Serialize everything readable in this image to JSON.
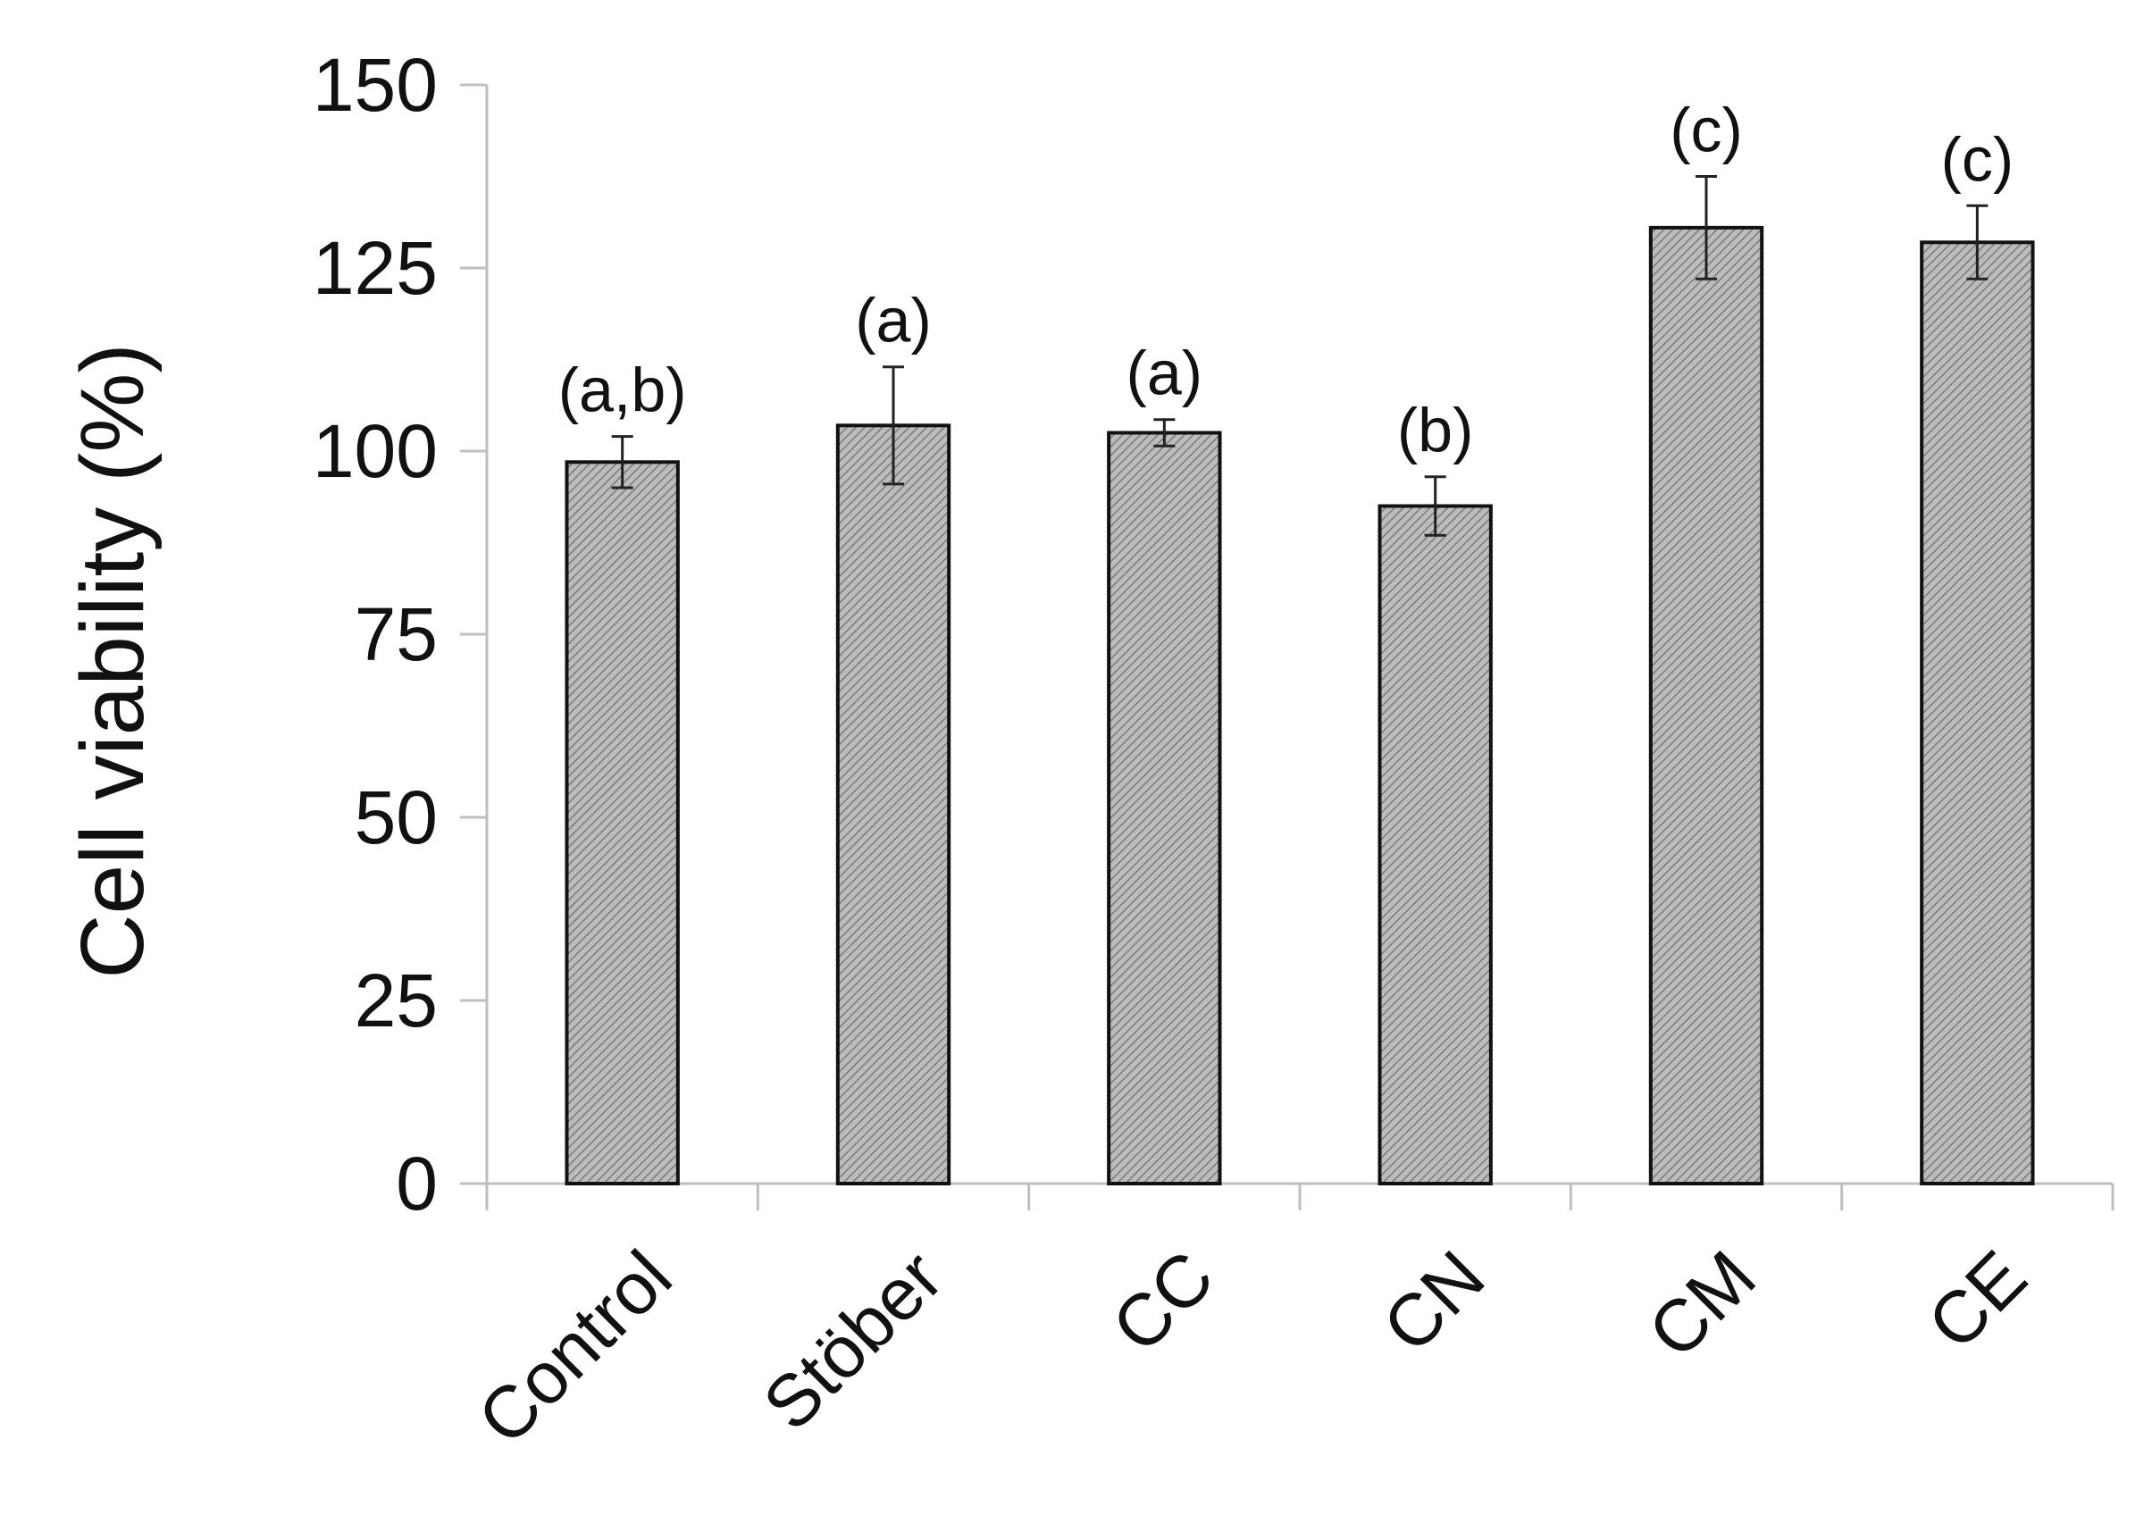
{
  "chart_data": {
    "type": "bar",
    "title": "",
    "xlabel": "",
    "ylabel": "Cell viability (%)",
    "ylim": [
      0,
      150
    ],
    "yticks": [
      0,
      25,
      50,
      75,
      100,
      125,
      150
    ],
    "grid": false,
    "legend": "none",
    "categories": [
      "Control",
      "Stöber",
      "CC",
      "CN",
      "CM",
      "CE"
    ],
    "values": [
      98.5,
      103.5,
      102.5,
      92.5,
      130.5,
      128.5
    ],
    "errors": [
      3.5,
      8,
      1.8,
      4,
      7,
      5
    ],
    "annotations": [
      "(a,b)",
      "(a)",
      "(a)",
      "(b)",
      "(c)",
      "(c)"
    ],
    "bar_fill": "#b8b8b8",
    "bar_hatch": "#7a7a7a",
    "bar_edge": "#111111"
  }
}
